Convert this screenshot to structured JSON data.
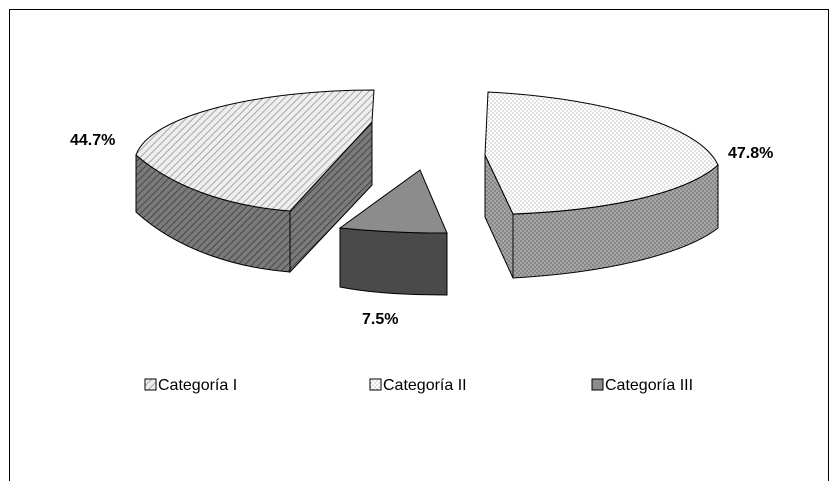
{
  "chart_data": {
    "type": "pie",
    "style": "3d-exploded",
    "categories": [
      "Categoría I",
      "Categoría II",
      "Categoría III"
    ],
    "values": [
      44.7,
      47.8,
      7.5
    ],
    "data_labels": [
      "44.7%",
      "47.8%",
      "7.5%"
    ],
    "legend_position": "bottom",
    "colors": {
      "cat1_top": "#e6e6e6",
      "cat1_side": "#6e6e6e",
      "cat2_top": "#ffffff",
      "cat2_side": "#9a9a9a",
      "cat3_top": "#8c8c8c",
      "cat3_side": "#4a4a4a"
    }
  }
}
